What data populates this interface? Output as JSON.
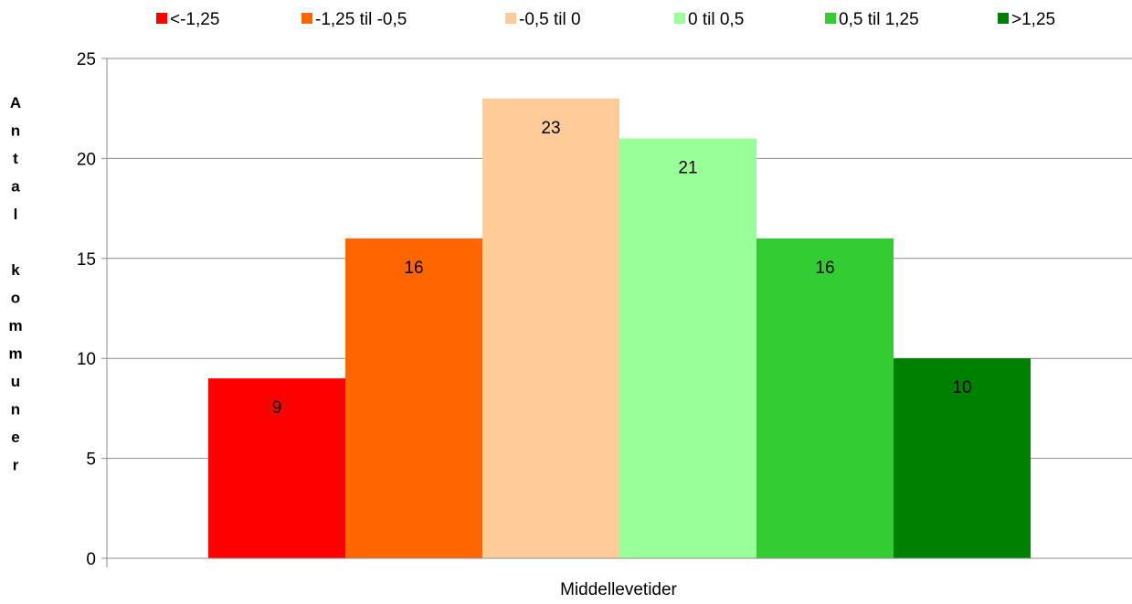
{
  "chart_data": {
    "type": "bar",
    "title": "",
    "xlabel": "Middellevetider",
    "ylabel": "Antal kommuner",
    "categories": [
      "Middellevetider"
    ],
    "series": [
      {
        "name": "<-1,25",
        "color": "#ff0000",
        "values": [
          9
        ]
      },
      {
        "name": "-1,25 til -0,5",
        "color": "#ff6600",
        "values": [
          16
        ]
      },
      {
        "name": "-0,5 til 0",
        "color": "#ffcc99",
        "values": [
          23
        ]
      },
      {
        "name": "0 til 0,5",
        "color": "#99ff99",
        "values": [
          21
        ]
      },
      {
        "name": "0,5 til 1,25",
        "color": "#33cc33",
        "values": [
          16
        ]
      },
      {
        "name": ">1,25",
        "color": "#008000",
        "values": [
          10
        ]
      }
    ],
    "ylim": [
      0,
      25
    ],
    "yticks": [
      0,
      5,
      10,
      15,
      20,
      25
    ],
    "grid": true,
    "legend": "top"
  }
}
